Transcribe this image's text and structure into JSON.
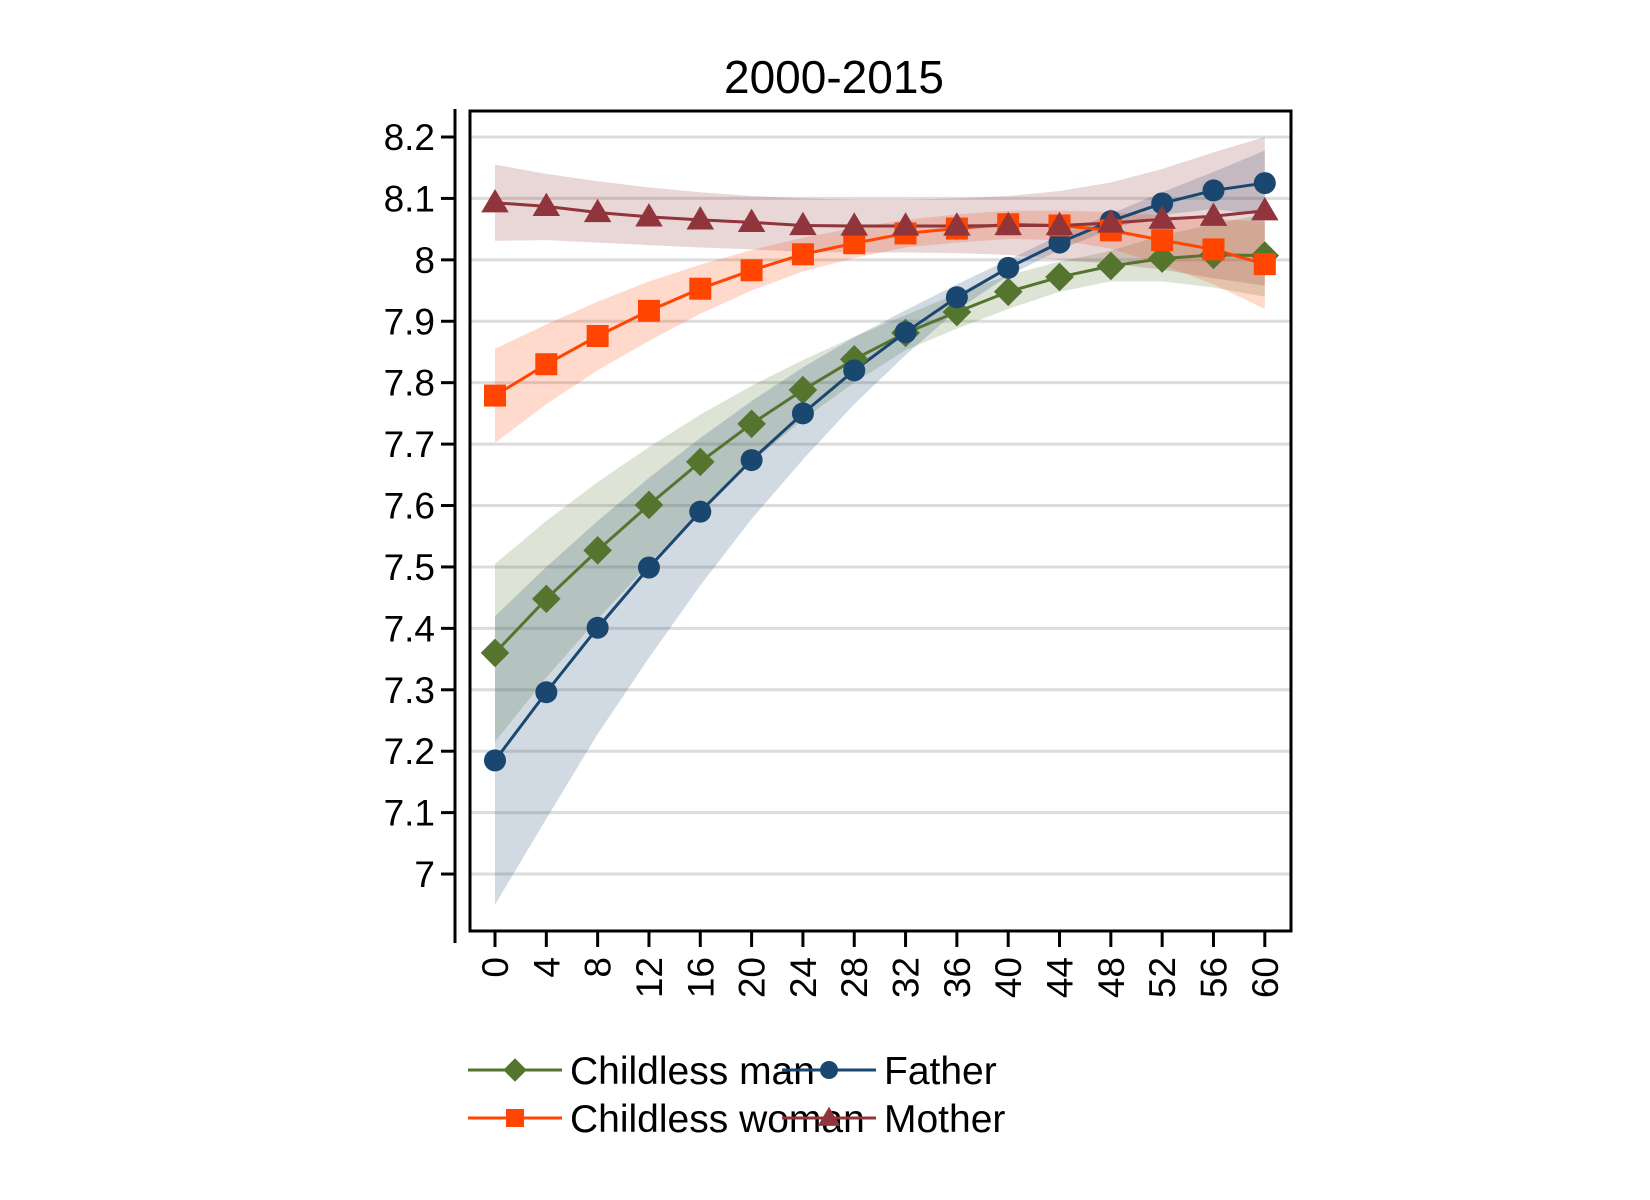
{
  "chart_data": {
    "type": "line",
    "title": "2000-2015",
    "xlabel": "",
    "ylabel": "",
    "x": [
      0,
      4,
      8,
      12,
      16,
      20,
      24,
      28,
      32,
      36,
      40,
      44,
      48,
      52,
      56,
      60
    ],
    "x_tick_labels": [
      "0",
      "4",
      "8",
      "12",
      "16",
      "20",
      "24",
      "28",
      "32",
      "36",
      "40",
      "44",
      "48",
      "52",
      "56",
      "60"
    ],
    "xlim": [
      -2,
      62
    ],
    "y_ticks": [
      7,
      7.1,
      7.2,
      7.3,
      7.4,
      7.5,
      7.6,
      7.7,
      7.8,
      7.9,
      8,
      8.1,
      8.2
    ],
    "y_tick_labels": [
      "7",
      "7.1",
      "7.2",
      "7.3",
      "7.4",
      "7.5",
      "7.6",
      "7.7",
      "7.8",
      "7.9",
      "8",
      "8.1",
      "8.2"
    ],
    "ylim": [
      6.91,
      8.245
    ],
    "grid": "horizontal",
    "legend_position": "bottom",
    "series": [
      {
        "name": "Childless man",
        "color": "#55752f",
        "band_color": "#55752f",
        "marker": "diamond",
        "values": [
          7.36,
          7.448,
          7.527,
          7.601,
          7.671,
          7.733,
          7.788,
          7.838,
          7.881,
          7.915,
          7.948,
          7.972,
          7.99,
          8.002,
          8.008,
          8.007
        ],
        "ci_upper": [
          7.505,
          7.575,
          7.638,
          7.695,
          7.748,
          7.795,
          7.837,
          7.875,
          7.91,
          7.945,
          7.975,
          7.997,
          8.015,
          8.04,
          8.058,
          8.075
        ],
        "ci_lower": [
          7.215,
          7.32,
          7.415,
          7.505,
          7.592,
          7.67,
          7.74,
          7.8,
          7.853,
          7.888,
          7.92,
          7.948,
          7.965,
          7.965,
          7.955,
          7.94
        ]
      },
      {
        "name": "Father",
        "color": "#1a476f",
        "band_color": "#1a476f",
        "marker": "circle",
        "values": [
          7.185,
          7.296,
          7.401,
          7.499,
          7.59,
          7.674,
          7.75,
          7.82,
          7.882,
          7.939,
          7.987,
          8.028,
          8.063,
          8.092,
          8.113,
          8.125
        ],
        "ci_upper": [
          7.42,
          7.5,
          7.575,
          7.645,
          7.71,
          7.77,
          7.825,
          7.874,
          7.918,
          7.96,
          8.0,
          8.04,
          8.075,
          8.11,
          8.143,
          8.178
        ],
        "ci_lower": [
          6.95,
          7.09,
          7.228,
          7.352,
          7.47,
          7.578,
          7.675,
          7.765,
          7.845,
          7.918,
          7.974,
          8.016,
          8.05,
          8.073,
          8.083,
          8.072
        ]
      },
      {
        "name": "Childless woman",
        "color": "#ff4500",
        "band_color": "#ff4500",
        "marker": "square",
        "values": [
          7.779,
          7.83,
          7.876,
          7.917,
          7.953,
          7.983,
          8.009,
          8.027,
          8.043,
          8.051,
          8.058,
          8.056,
          8.048,
          8.032,
          8.017,
          7.993
        ],
        "ci_upper": [
          7.855,
          7.895,
          7.932,
          7.965,
          7.992,
          8.016,
          8.036,
          8.052,
          8.065,
          8.074,
          8.08,
          8.08,
          8.078,
          8.072,
          8.067,
          8.062
        ],
        "ci_lower": [
          7.702,
          7.765,
          7.82,
          7.868,
          7.912,
          7.95,
          7.981,
          8.003,
          8.02,
          8.028,
          8.034,
          8.032,
          8.018,
          7.992,
          7.96,
          7.92
        ]
      },
      {
        "name": "Mother",
        "color": "#90353b",
        "band_color": "#90353b",
        "marker": "triangle",
        "values": [
          8.093,
          8.087,
          8.077,
          8.07,
          8.065,
          8.061,
          8.056,
          8.055,
          8.055,
          8.055,
          8.056,
          8.056,
          8.06,
          8.066,
          8.071,
          8.08
        ],
        "ci_upper": [
          8.155,
          8.14,
          8.128,
          8.118,
          8.11,
          8.104,
          8.1,
          8.098,
          8.098,
          8.1,
          8.104,
          8.112,
          8.126,
          8.148,
          8.175,
          8.2
        ],
        "ci_lower": [
          8.031,
          8.032,
          8.028,
          8.024,
          8.02,
          8.017,
          8.013,
          8.012,
          8.012,
          8.011,
          8.008,
          8.0,
          7.994,
          7.984,
          7.97,
          7.958
        ]
      }
    ],
    "legend": [
      {
        "label": "Childless man",
        "series": 0
      },
      {
        "label": "Father",
        "series": 1
      },
      {
        "label": "Childless woman",
        "series": 2
      },
      {
        "label": "Mother",
        "series": 3
      }
    ]
  }
}
